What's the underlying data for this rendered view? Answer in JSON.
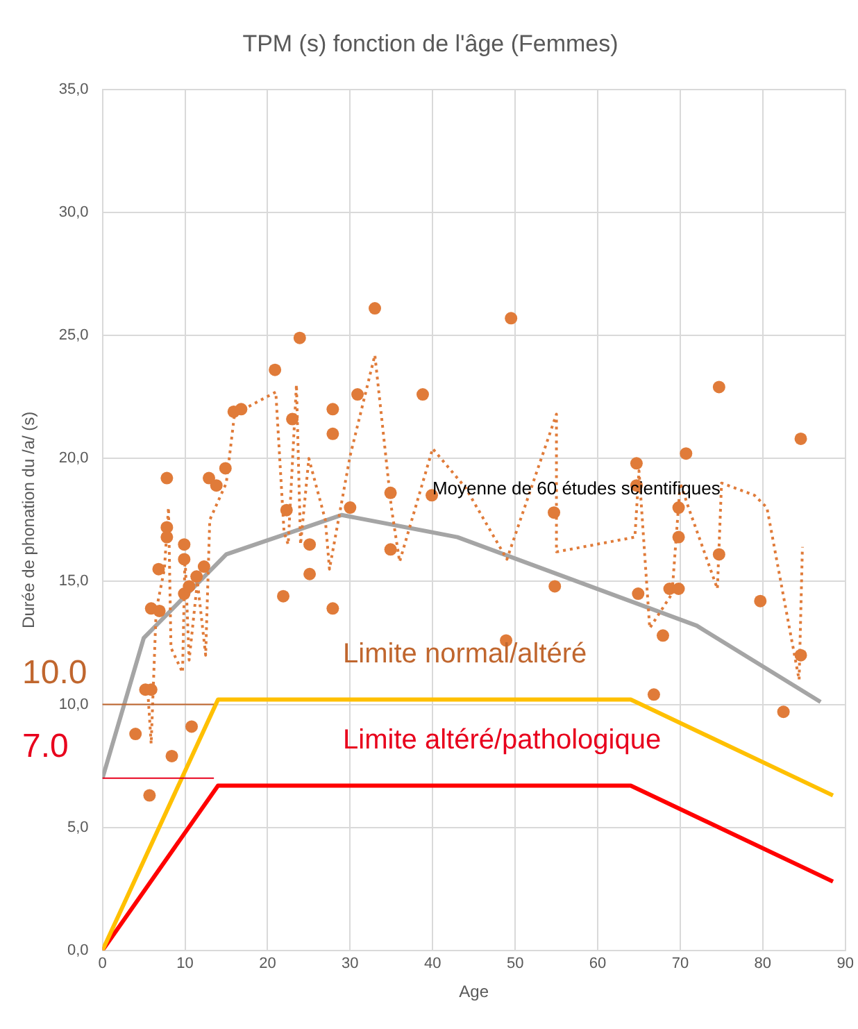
{
  "chart_data": {
    "type": "scatter",
    "title": "TPM (s) fonction de l'âge (Femmes)",
    "xlabel": "Age",
    "ylabel": "Durée de phonation du /a/ (s)",
    "xlim": [
      0,
      90
    ],
    "xticks": [
      0,
      10,
      20,
      30,
      40,
      50,
      60,
      70,
      80,
      90
    ],
    "ylim": [
      0,
      35
    ],
    "yticks": [
      {
        "value": 0,
        "label": "0,0"
      },
      {
        "value": 5,
        "label": "5,0"
      },
      {
        "value": 10,
        "label": "10,0"
      },
      {
        "value": 15,
        "label": "15,0"
      },
      {
        "value": 20,
        "label": "20,0"
      },
      {
        "value": 25,
        "label": "25,0"
      },
      {
        "value": 30,
        "label": "30,0"
      },
      {
        "value": 35,
        "label": "35,0"
      }
    ],
    "grid": true,
    "legend": false,
    "series": [
      {
        "type": "scatter",
        "marker": "circle",
        "color": "#e07b39",
        "x": [
          4,
          5.2,
          5.9,
          5.7,
          5.9,
          6.9,
          6.8,
          7.8,
          7.8,
          7.8,
          8.4,
          9.9,
          9.9,
          9.9,
          10.8,
          10.5,
          11.4,
          12.3,
          12.9,
          13.8,
          14.9,
          15.9,
          16.8,
          20.9,
          21.9,
          22.3,
          23,
          23.9,
          25.1,
          25.1,
          27.9,
          27.9,
          27.9,
          30.9,
          30,
          33,
          34.9,
          34.9,
          38.8,
          39.9,
          49.5,
          48.9,
          54.7,
          54.8,
          64.7,
          64.7,
          69.8,
          70.7,
          69.8,
          64.9,
          68.7,
          69.8,
          67.9,
          66.8,
          74.7,
          74.7,
          79.7,
          82.5,
          84.6,
          84.6
        ],
        "values": [
          8.8,
          10.6,
          10.6,
          6.3,
          13.9,
          13.8,
          15.5,
          17.2,
          16.8,
          19.2,
          7.9,
          14.5,
          16.5,
          15.9,
          9.1,
          14.8,
          15.2,
          15.6,
          19.2,
          18.9,
          19.6,
          21.9,
          22,
          23.6,
          14.4,
          17.9,
          21.6,
          24.9,
          16.5,
          15.3,
          22,
          21,
          13.9,
          22.6,
          18,
          26.1,
          18.6,
          16.3,
          22.6,
          18.5,
          25.7,
          12.6,
          17.8,
          14.8,
          19.8,
          18.9,
          18,
          20.2,
          16.8,
          14.5,
          14.7,
          14.7,
          12.8,
          10.4,
          16.1,
          22.9,
          14.2,
          9.7,
          12,
          20.8
        ]
      },
      {
        "type": "line",
        "marker": "none",
        "line_style": "dotted",
        "color": "#e07b39",
        "x": [
          5.5,
          5.9,
          6.5,
          7.5,
          8,
          8.3,
          9.7,
          10,
          10.5,
          11.5,
          12.5,
          13,
          15,
          16,
          21,
          22,
          22.5,
          23.5,
          24,
          25,
          27,
          27.5,
          30,
          33,
          35,
          36,
          40,
          44,
          49,
          55,
          55,
          64.5,
          65,
          66.3,
          69,
          70,
          71,
          74.5,
          75,
          79,
          80.5,
          84.4,
          84.8
        ],
        "values": [
          10.5,
          8.4,
          13.8,
          15.5,
          18,
          12.3,
          11.3,
          16,
          11.8,
          15,
          12,
          17.5,
          19,
          21.8,
          22.7,
          17,
          16.5,
          23,
          16.5,
          20,
          17.5,
          15.5,
          20.1,
          24.2,
          18,
          15.8,
          20.4,
          18.8,
          15.9,
          21.8,
          16.2,
          16.8,
          19.5,
          13.1,
          14.5,
          19,
          18,
          14.7,
          19,
          18.5,
          18,
          11,
          16.4
        ]
      },
      {
        "type": "line",
        "marker": "none",
        "name": "Moyenne de 60 études scientifiques",
        "color": "#a5a5a5",
        "x": [
          0,
          5,
          15,
          29,
          43,
          72,
          87
        ],
        "values": [
          7,
          12.7,
          16.1,
          17.7,
          16.8,
          13.2,
          10.1
        ]
      },
      {
        "type": "line",
        "marker": "none",
        "color": "#ffc000",
        "x": [
          0,
          14,
          64,
          88.5
        ],
        "values": [
          0,
          10.2,
          10.2,
          6.3
        ]
      },
      {
        "type": "line",
        "marker": "none",
        "color": "#ff0000",
        "x": [
          0,
          14,
          64,
          88.5
        ],
        "values": [
          0,
          6.7,
          6.7,
          2.8
        ]
      }
    ],
    "ref_lines": [
      {
        "axis": "y",
        "value": 10,
        "label": "10.0",
        "color": "#c0662e"
      },
      {
        "axis": "y",
        "value": 7,
        "label": "7.0",
        "color": "#e8001c"
      }
    ],
    "annotations": [
      "Limite normal/altéré",
      "Limite altéré/pathologique"
    ]
  }
}
